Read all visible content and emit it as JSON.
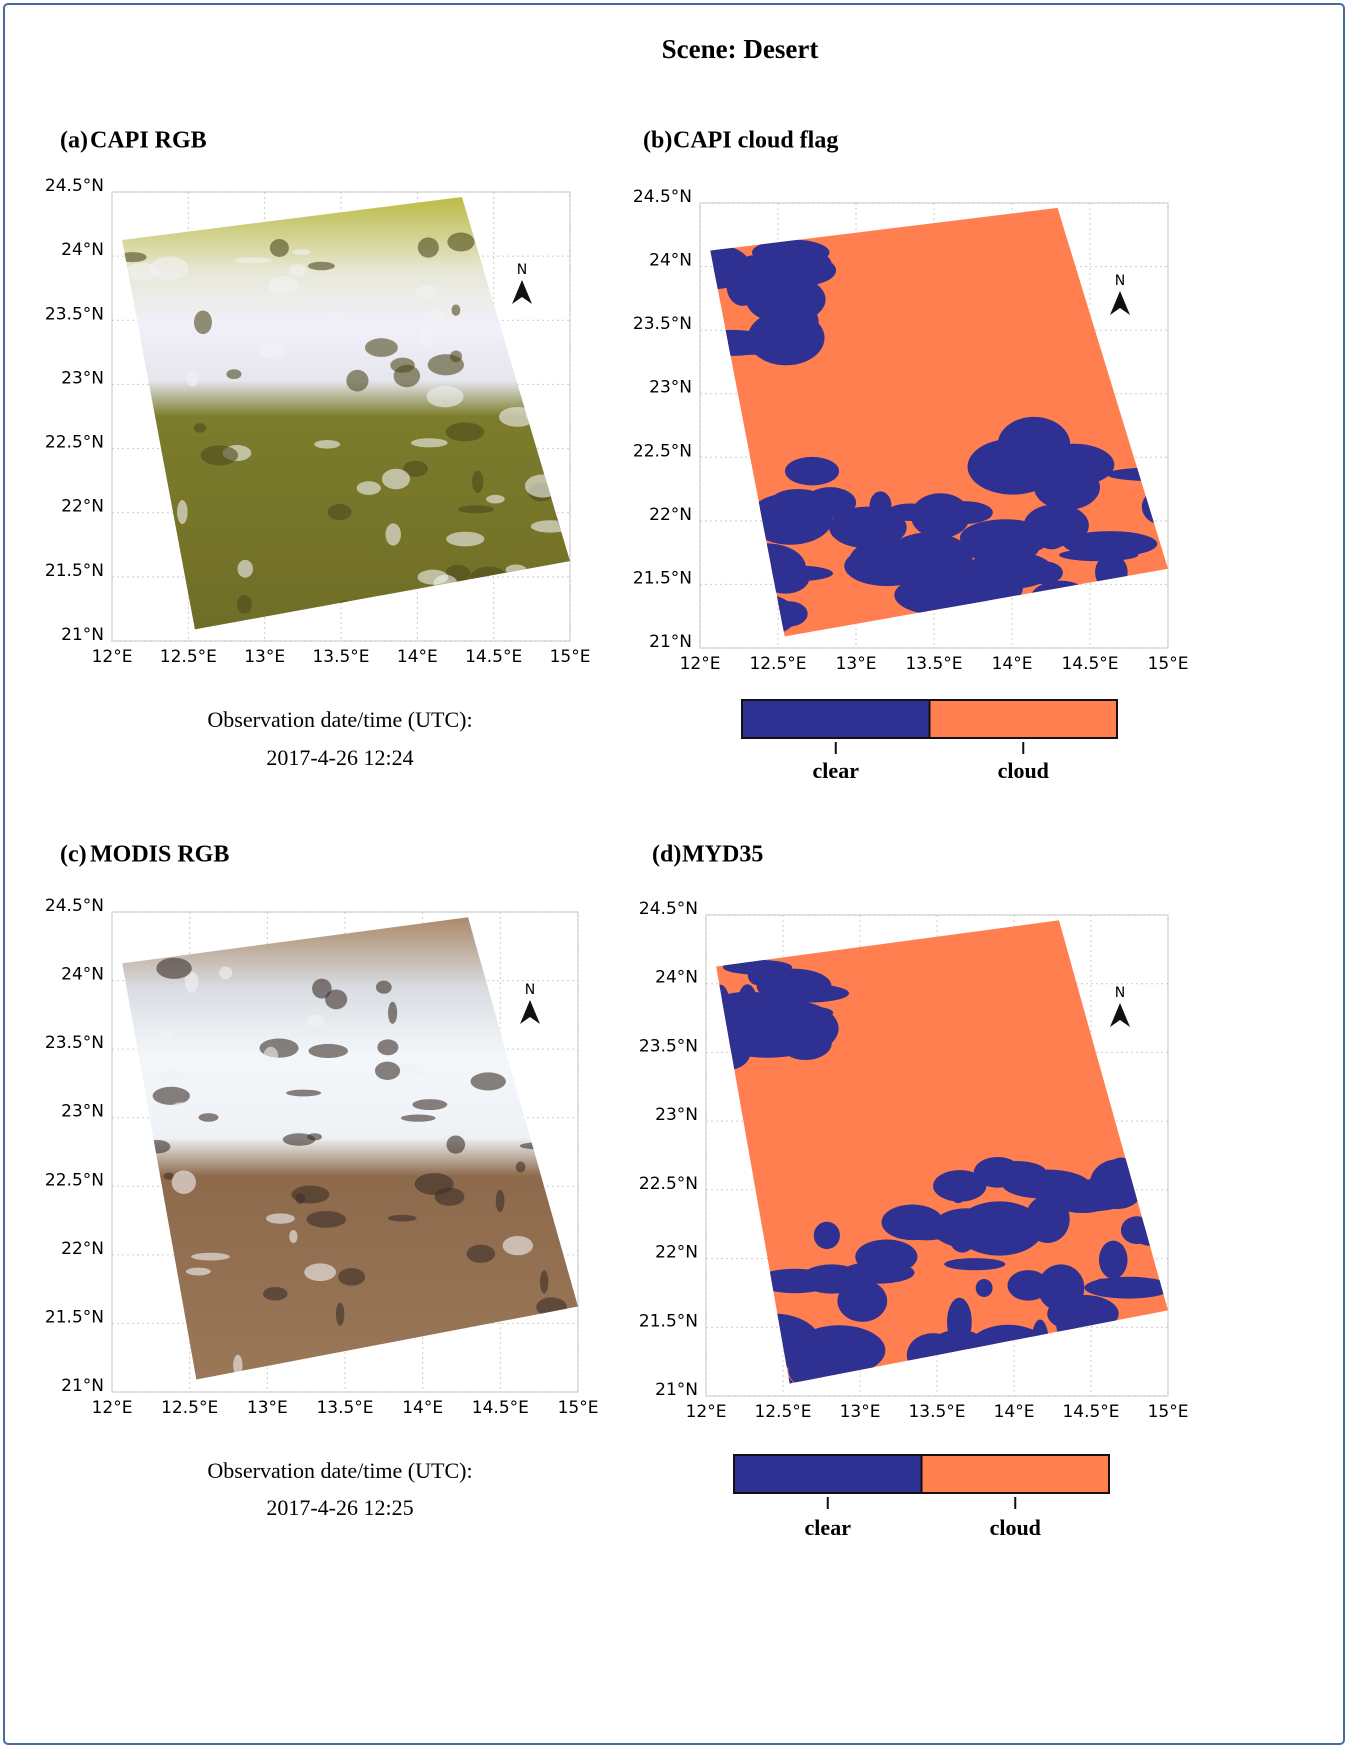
{
  "title": "Scene: Desert",
  "panels": [
    {
      "label": "(a)",
      "title": "CAPI RGB",
      "north": "N",
      "xlim": [
        12,
        15
      ],
      "ylim": [
        21,
        24.5
      ],
      "xticks": [
        {
          "value": 12,
          "label": "12°E"
        },
        {
          "value": 12.5,
          "label": "12.5°E"
        },
        {
          "value": 13,
          "label": "13°E"
        },
        {
          "value": 13.5,
          "label": "13.5°E"
        },
        {
          "value": 14,
          "label": "14°E"
        },
        {
          "value": 14.5,
          "label": "14.5°E"
        },
        {
          "value": 15,
          "label": "15°E"
        }
      ],
      "yticks": [
        {
          "value": 21,
          "label": "21°N"
        },
        {
          "value": 21.5,
          "label": "21.5°N"
        },
        {
          "value": 22,
          "label": "22°N"
        },
        {
          "value": 22.5,
          "label": "22.5°N"
        },
        {
          "value": 23,
          "label": "23°N"
        },
        {
          "value": 23.5,
          "label": "23.5°N"
        },
        {
          "value": 24,
          "label": "24°N"
        },
        {
          "value": 24.5,
          "label": "24.5°N"
        }
      ],
      "caption": [
        "Observation date/time (UTC):",
        "2017-4-26 12:24"
      ]
    },
    {
      "label": "(b)",
      "title": "CAPI cloud flag",
      "north": "N",
      "xlim": [
        12,
        15
      ],
      "ylim": [
        21,
        24.5
      ],
      "xticks": [
        {
          "value": 12,
          "label": "12°E"
        },
        {
          "value": 12.5,
          "label": "12.5°E"
        },
        {
          "value": 13,
          "label": "13°E"
        },
        {
          "value": 13.5,
          "label": "13.5°E"
        },
        {
          "value": 14,
          "label": "14°E"
        },
        {
          "value": 14.5,
          "label": "14.5°E"
        },
        {
          "value": 15,
          "label": "15°E"
        }
      ],
      "yticks": [
        {
          "value": 21,
          "label": "21°N"
        },
        {
          "value": 21.5,
          "label": "21.5°N"
        },
        {
          "value": 22,
          "label": "22°N"
        },
        {
          "value": 22.5,
          "label": "22.5°N"
        },
        {
          "value": 23,
          "label": "23°N"
        },
        {
          "value": 23.5,
          "label": "23.5°N"
        },
        {
          "value": 24,
          "label": "24°N"
        },
        {
          "value": 24.5,
          "label": "24.5°N"
        }
      ]
    },
    {
      "label": "(c)",
      "title": "MODIS RGB",
      "north": "N",
      "xlim": [
        12,
        15
      ],
      "ylim": [
        21,
        24.5
      ],
      "xticks": [
        {
          "value": 12,
          "label": "12°E"
        },
        {
          "value": 12.5,
          "label": "12.5°E"
        },
        {
          "value": 13,
          "label": "13°E"
        },
        {
          "value": 13.5,
          "label": "13.5°E"
        },
        {
          "value": 14,
          "label": "14°E"
        },
        {
          "value": 14.5,
          "label": "14.5°E"
        },
        {
          "value": 15,
          "label": "15°E"
        }
      ],
      "yticks": [
        {
          "value": 21,
          "label": "21°N"
        },
        {
          "value": 21.5,
          "label": "21.5°N"
        },
        {
          "value": 22,
          "label": "22°N"
        },
        {
          "value": 22.5,
          "label": "22.5°N"
        },
        {
          "value": 23,
          "label": "23°N"
        },
        {
          "value": 23.5,
          "label": "23.5°N"
        },
        {
          "value": 24,
          "label": "24°N"
        },
        {
          "value": 24.5,
          "label": "24.5°N"
        }
      ],
      "caption": [
        "Observation date/time (UTC):",
        "2017-4-26 12:25"
      ]
    },
    {
      "label": "(d)",
      "title": "MYD35",
      "north": "N",
      "xlim": [
        12,
        15
      ],
      "ylim": [
        21,
        24.5
      ],
      "xticks": [
        {
          "value": 12,
          "label": "12°E"
        },
        {
          "value": 12.5,
          "label": "12.5°E"
        },
        {
          "value": 13,
          "label": "13°E"
        },
        {
          "value": 13.5,
          "label": "13.5°E"
        },
        {
          "value": 14,
          "label": "14°E"
        },
        {
          "value": 14.5,
          "label": "14.5°E"
        },
        {
          "value": 15,
          "label": "15°E"
        }
      ],
      "yticks": [
        {
          "value": 21,
          "label": "21°N"
        },
        {
          "value": 21.5,
          "label": "21.5°N"
        },
        {
          "value": 22,
          "label": "22°N"
        },
        {
          "value": 22.5,
          "label": "22.5°N"
        },
        {
          "value": 23,
          "label": "23°N"
        },
        {
          "value": 23.5,
          "label": "23.5°N"
        },
        {
          "value": 24,
          "label": "24°N"
        },
        {
          "value": 24.5,
          "label": "24.5°N"
        }
      ]
    }
  ],
  "legend": {
    "items": [
      {
        "name": "clear",
        "color": "#2e3192"
      },
      {
        "name": "cloud",
        "color": "#ff7f50"
      }
    ]
  }
}
